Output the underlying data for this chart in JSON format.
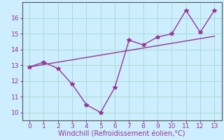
{
  "x": [
    0,
    1,
    2,
    3,
    4,
    5,
    6,
    7,
    8,
    9,
    10,
    11,
    12,
    13
  ],
  "y_line": [
    12.9,
    13.2,
    12.8,
    11.8,
    10.5,
    10.0,
    11.6,
    14.6,
    14.3,
    14.8,
    15.0,
    16.5,
    15.1,
    16.5
  ],
  "y_trend_x": [
    0,
    13
  ],
  "y_trend_y": [
    12.9,
    14.85
  ],
  "line_color": "#993399",
  "trend_color": "#993399",
  "bg_color": "#cceeff",
  "grid_color": "#aaddcc",
  "tick_color": "#993399",
  "axis_color": "#555555",
  "xlabel": "Windchill (Refroidissement éolien,°C)",
  "xlim": [
    -0.5,
    13.5
  ],
  "ylim": [
    9.5,
    17.0
  ],
  "xticks": [
    0,
    1,
    2,
    3,
    4,
    5,
    6,
    7,
    8,
    9,
    10,
    11,
    12,
    13
  ],
  "yticks": [
    10,
    11,
    12,
    13,
    14,
    15,
    16
  ],
  "marker": "*",
  "markersize": 4,
  "linewidth": 1.0,
  "xlabel_fontsize": 7,
  "tick_fontsize": 6.5
}
